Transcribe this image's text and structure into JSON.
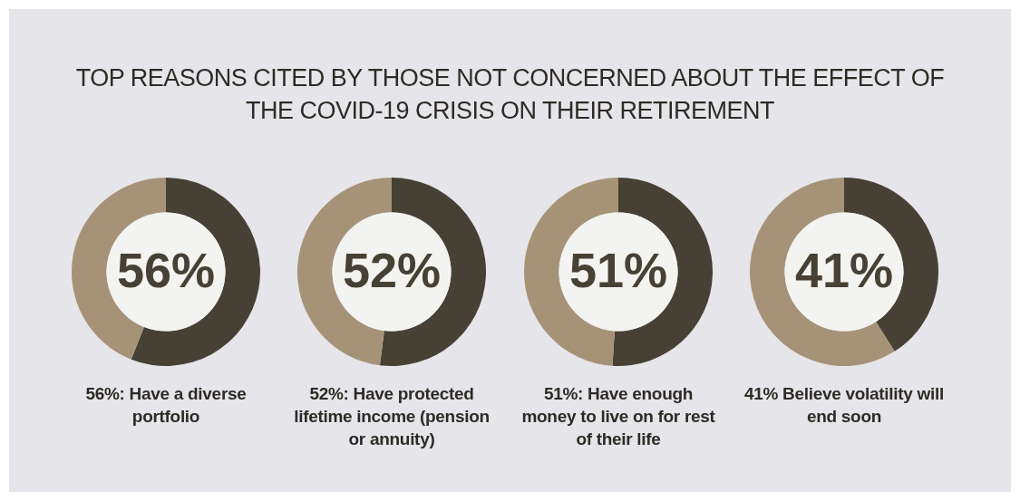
{
  "chart_data": [
    {
      "type": "donut",
      "title": "TOP REASONS CITED BY THOSE NOT CONCERNED ABOUT THE EFFECT OF THE COVID-19 CRISIS ON THEIR RETIREMENT",
      "categories": [
        null,
        null
      ],
      "values": [
        56,
        44
      ],
      "colors": [
        "#464134",
        "#a69377"
      ],
      "annotations": [
        "56%",
        "56%: Have a diverse portfolio"
      ]
    },
    {
      "type": "donut",
      "categories": [
        null,
        null
      ],
      "values": [
        52,
        48
      ],
      "colors": [
        "#464134",
        "#a69377"
      ],
      "annotations": [
        "52%",
        "52%: Have protected lifetime income (pension or annuity)"
      ]
    },
    {
      "type": "donut",
      "categories": [
        null,
        null
      ],
      "values": [
        51,
        49
      ],
      "colors": [
        "#464134",
        "#a69377"
      ],
      "annotations": [
        "51%",
        "51%: Have enough money to live on for rest of their life"
      ]
    },
    {
      "type": "donut",
      "categories": [
        null,
        null
      ],
      "values": [
        41,
        59
      ],
      "colors": [
        "#464134",
        "#a69377"
      ],
      "annotations": [
        "41%",
        "41% Believe volatility will end soon"
      ]
    }
  ]
}
